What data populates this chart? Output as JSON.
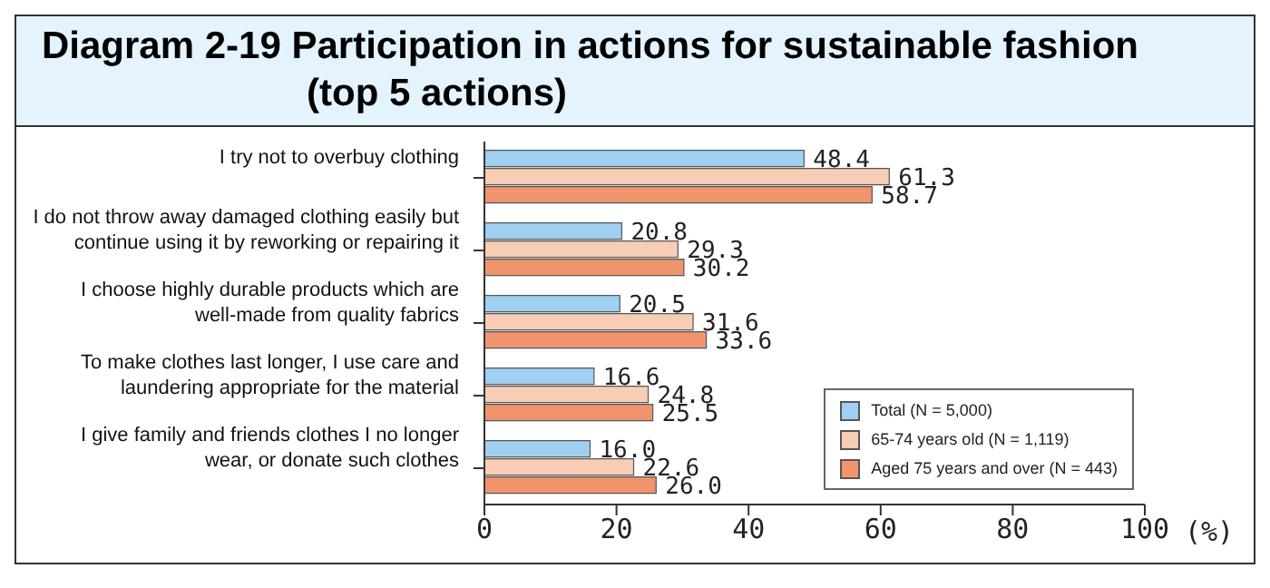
{
  "chart_data": {
    "type": "bar",
    "orientation": "horizontal",
    "title": "Diagram 2-19 Participation in actions for sustainable fashion",
    "subtitle": "(top 5 actions)",
    "xlabel": "(%)",
    "categories": [
      "I try not to overbuy clothing",
      "I do not throw away damaged clothing easily but continue using it by reworking or repairing it",
      "I choose highly durable products which are well-made from quality fabrics",
      "To make clothes last longer, I use care and laundering appropriate for the material",
      "I give family and friends clothes I no longer wear, or donate such clothes"
    ],
    "series": [
      {
        "name": "Total (N = 5,000)",
        "color": "#9fd0f2",
        "values": [
          48.4,
          20.8,
          20.5,
          16.6,
          16.0
        ],
        "value_labels": [
          "48.4",
          "20.8",
          "20.5",
          "16.6",
          "16.0"
        ]
      },
      {
        "name": "65-74 years old (N = 1,119)",
        "color": "#f7cdb6",
        "values": [
          61.3,
          29.3,
          31.6,
          24.8,
          22.6
        ],
        "value_labels": [
          "61.3",
          "29.3",
          "31.6",
          "24.8",
          "22.6"
        ]
      },
      {
        "name": "Aged 75 years and over (N = 443)",
        "color": "#f0946e",
        "values": [
          58.7,
          30.2,
          33.6,
          25.5,
          26.0
        ],
        "value_labels": [
          "58.7",
          "30.2",
          "33.6",
          "25.5",
          "26.0"
        ]
      }
    ],
    "xlim": [
      0,
      100
    ],
    "xticks": [
      0,
      20,
      40,
      60,
      80,
      100
    ],
    "legend": "bottom right",
    "grid": false
  }
}
